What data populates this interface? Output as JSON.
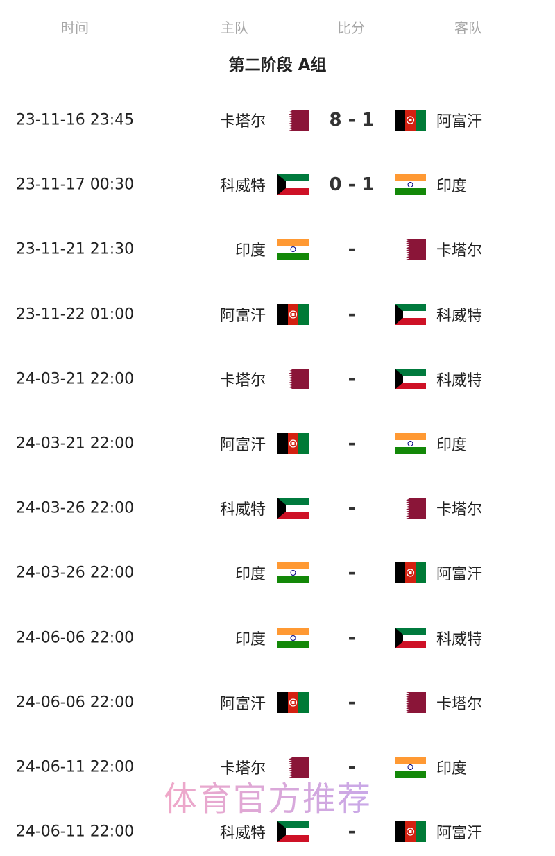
{
  "header": {
    "time": "时间",
    "home": "主队",
    "score": "比分",
    "away": "客队"
  },
  "title": "第二阶段 A组",
  "flags": {
    "qatar": {
      "colors": [
        "#8a1538",
        "#ffffff"
      ]
    },
    "afghanistan": {
      "colors": [
        "#000000",
        "#d32011",
        "#007a36"
      ]
    },
    "kuwait": {
      "colors": [
        "#007a3d",
        "#ffffff",
        "#ce1126",
        "#000000"
      ]
    },
    "india": {
      "colors": [
        "#ff9933",
        "#ffffff",
        "#138808",
        "#000080"
      ]
    }
  },
  "matches": [
    {
      "time": "23-11-16 23:45",
      "home": "卡塔尔",
      "home_flag": "qatar",
      "score": "8 - 1",
      "away": "阿富汗",
      "away_flag": "afghanistan"
    },
    {
      "time": "23-11-17 00:30",
      "home": "科威特",
      "home_flag": "kuwait",
      "score": "0 - 1",
      "away": "印度",
      "away_flag": "india"
    },
    {
      "time": "23-11-21 21:30",
      "home": "印度",
      "home_flag": "india",
      "score": "-",
      "away": "卡塔尔",
      "away_flag": "qatar"
    },
    {
      "time": "23-11-22 01:00",
      "home": "阿富汗",
      "home_flag": "afghanistan",
      "score": "-",
      "away": "科威特",
      "away_flag": "kuwait"
    },
    {
      "time": "24-03-21 22:00",
      "home": "卡塔尔",
      "home_flag": "qatar",
      "score": "-",
      "away": "科威特",
      "away_flag": "kuwait"
    },
    {
      "time": "24-03-21 22:00",
      "home": "阿富汗",
      "home_flag": "afghanistan",
      "score": "-",
      "away": "印度",
      "away_flag": "india"
    },
    {
      "time": "24-03-26 22:00",
      "home": "科威特",
      "home_flag": "kuwait",
      "score": "-",
      "away": "卡塔尔",
      "away_flag": "qatar"
    },
    {
      "time": "24-03-26 22:00",
      "home": "印度",
      "home_flag": "india",
      "score": "-",
      "away": "阿富汗",
      "away_flag": "afghanistan"
    },
    {
      "time": "24-06-06 22:00",
      "home": "印度",
      "home_flag": "india",
      "score": "-",
      "away": "科威特",
      "away_flag": "kuwait"
    },
    {
      "time": "24-06-06 22:00",
      "home": "阿富汗",
      "home_flag": "afghanistan",
      "score": "-",
      "away": "卡塔尔",
      "away_flag": "qatar"
    },
    {
      "time": "24-06-11 22:00",
      "home": "卡塔尔",
      "home_flag": "qatar",
      "score": "-",
      "away": "印度",
      "away_flag": "india"
    },
    {
      "time": "24-06-11 22:00",
      "home": "科威特",
      "home_flag": "kuwait",
      "score": "-",
      "away": "阿富汗",
      "away_flag": "afghanistan"
    }
  ],
  "watermark": "体育官方推荐"
}
